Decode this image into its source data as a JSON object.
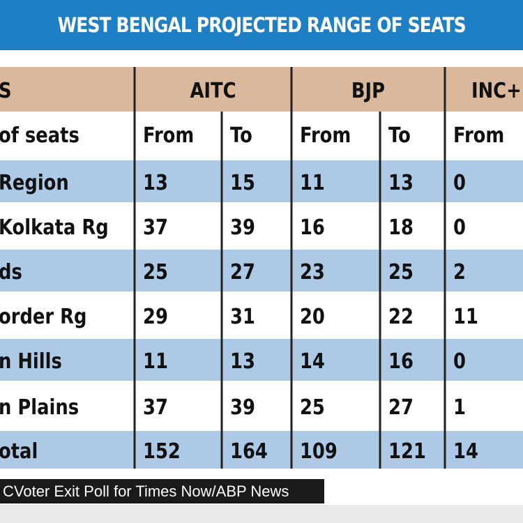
{
  "title": "WEST BENGAL PROJECTED RANGE OF SEATS",
  "source": "CVoter Exit Poll for Times Now/ABP News",
  "colors": {
    "banner": "#1f7fc4",
    "header_band": "#d9b89b",
    "row_band": "#aec9e6",
    "divider": "#222222",
    "source_bg": "#1a1a1a"
  },
  "chart_data": {
    "type": "table",
    "header": {
      "first_col": "S",
      "groups": [
        "AITC",
        "BJP",
        "INC+"
      ]
    },
    "subheader": [
      "of seats",
      "From",
      "To",
      "From",
      "To",
      "From"
    ],
    "rows": [
      {
        "label": "Region",
        "values": [
          "13",
          "15",
          "11",
          "13",
          "0"
        ]
      },
      {
        "label": "Kolkata Rg",
        "values": [
          "37",
          "39",
          "16",
          "18",
          "0"
        ]
      },
      {
        "label": "ds",
        "values": [
          "25",
          "27",
          "23",
          "25",
          "2"
        ]
      },
      {
        "label": "order Rg",
        "values": [
          "29",
          "31",
          "20",
          "22",
          "11"
        ]
      },
      {
        "label": "n Hills",
        "values": [
          "11",
          "13",
          "14",
          "16",
          "0"
        ]
      },
      {
        "label": "n Plains",
        "values": [
          "37",
          "39",
          "25",
          "27",
          "1"
        ]
      },
      {
        "label": "otal",
        "values": [
          "152",
          "164",
          "109",
          "121",
          "14"
        ]
      }
    ]
  }
}
